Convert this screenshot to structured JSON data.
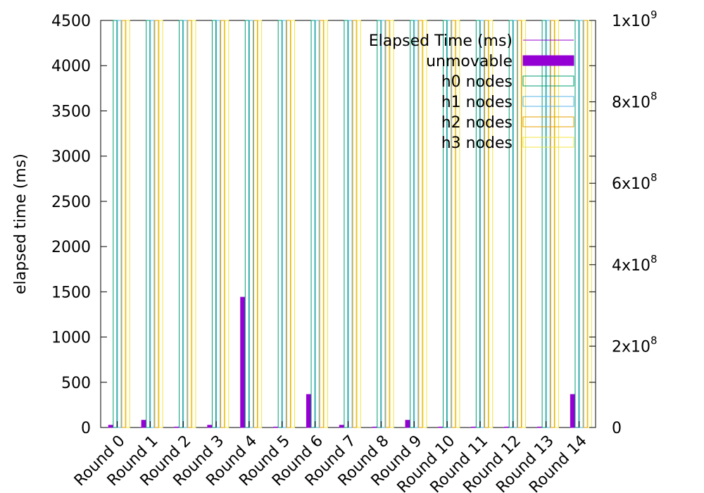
{
  "chart_data": {
    "type": "bar",
    "categories": [
      "Round 0",
      "Round 1",
      "Round 2",
      "Round 3",
      "Round 4",
      "Round 5",
      "Round 6",
      "Round 7",
      "Round 8",
      "Round 9",
      "Round 10",
      "Round 11",
      "Round 12",
      "Round 13",
      "Round 14"
    ],
    "ylabel": "elapsed time (ms)",
    "ylim": [
      0,
      4500
    ],
    "y_ticks": [
      "0",
      "500",
      "1000",
      "1500",
      "2000",
      "2500",
      "3000",
      "3500",
      "4000",
      "4500"
    ],
    "y2lim": [
      0,
      1000000000
    ],
    "y2_ticks": [
      {
        "value": 0,
        "mantissa": "0",
        "exp": ""
      },
      {
        "value": 200000000,
        "mantissa": "2x10",
        "exp": "8"
      },
      {
        "value": 400000000,
        "mantissa": "4x10",
        "exp": "8"
      },
      {
        "value": 600000000,
        "mantissa": "6x10",
        "exp": "8"
      },
      {
        "value": 800000000,
        "mantissa": "8x10",
        "exp": "8"
      },
      {
        "value": 1000000000,
        "mantissa": "1x10",
        "exp": "9"
      }
    ],
    "legend_position": "top-right",
    "series": [
      {
        "name": "Elapsed Time (ms)",
        "axis": "y2",
        "style": "line",
        "color": "#9400d3",
        "values": [
          300000,
          300000,
          300000,
          300000,
          300000,
          300000,
          300000,
          300000,
          300000,
          300000,
          300000,
          300000,
          300000,
          300000,
          300000
        ]
      },
      {
        "name": "unmovable",
        "axis": "y",
        "style": "filled",
        "color": "#9400d3",
        "values": [
          25,
          80,
          5,
          25,
          1440,
          5,
          365,
          25,
          5,
          80,
          5,
          5,
          5,
          5,
          365
        ]
      },
      {
        "name": "h0 nodes",
        "axis": "y",
        "style": "outline",
        "color": "#009e73",
        "values": [
          4500,
          4500,
          4500,
          4500,
          4500,
          4500,
          4500,
          4500,
          4500,
          4500,
          4500,
          4500,
          4500,
          4500,
          4500
        ]
      },
      {
        "name": "h1 nodes",
        "axis": "y",
        "style": "outline",
        "color": "#56b4e9",
        "values": [
          4500,
          4500,
          4500,
          4500,
          4500,
          4500,
          4500,
          4500,
          4500,
          4500,
          4500,
          4500,
          4500,
          4500,
          4500
        ]
      },
      {
        "name": "h2 nodes",
        "axis": "y",
        "style": "outline",
        "color": "#e69f00",
        "values": [
          4500,
          4500,
          4500,
          4500,
          4500,
          4500,
          4500,
          4500,
          4500,
          4500,
          4500,
          4500,
          4500,
          4500,
          4500
        ]
      },
      {
        "name": "h3 nodes",
        "axis": "y",
        "style": "outline",
        "color": "#f0e442",
        "values": [
          4500,
          4500,
          4500,
          4500,
          4500,
          4500,
          4500,
          4500,
          4500,
          4500,
          4500,
          4500,
          4500,
          4500,
          4500
        ]
      }
    ]
  }
}
